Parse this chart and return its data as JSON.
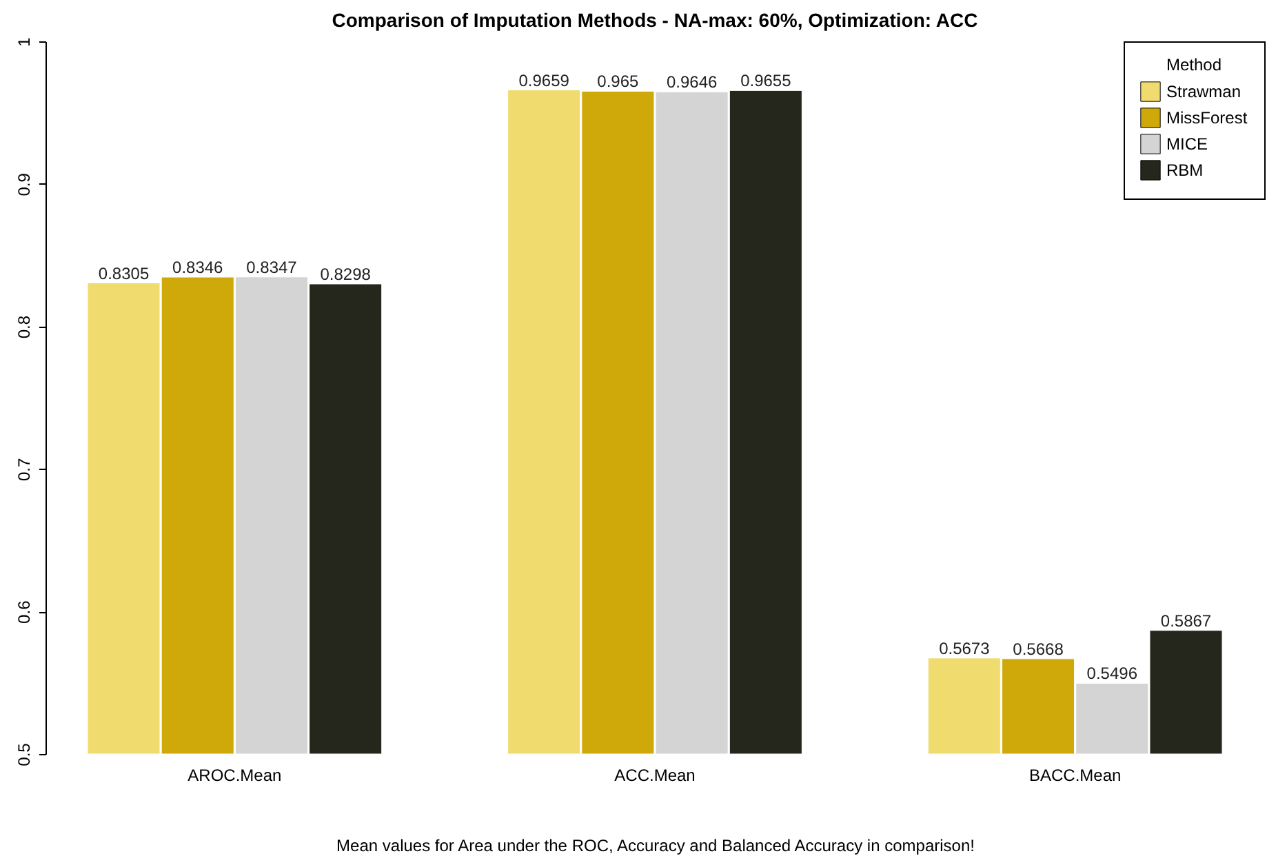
{
  "chart_data": {
    "type": "bar",
    "title": "Comparison of Imputation Methods - NA-max: 60%, Optimization: ACC",
    "xlabel": "Mean values for Area under the ROC, Accuracy and Balanced Accuracy in comparison!",
    "categories": [
      "AROC.Mean",
      "ACC.Mean",
      "BACC.Mean"
    ],
    "series": [
      {
        "name": "Strawman",
        "color": "#f0dc6e",
        "values": [
          0.8305,
          0.9659,
          0.5673
        ]
      },
      {
        "name": "MissForest",
        "color": "#cfa809",
        "values": [
          0.8346,
          0.965,
          0.5668
        ]
      },
      {
        "name": "MICE",
        "color": "#d4d4d4",
        "values": [
          0.8347,
          0.9646,
          0.5496
        ]
      },
      {
        "name": "RBM",
        "color": "#25271d",
        "values": [
          0.8298,
          0.9655,
          0.5867
        ]
      }
    ],
    "legend_title": "Method",
    "legend": "top right",
    "ylim": [
      0.5,
      1.0
    ],
    "yticks": [
      0.5,
      0.6,
      0.7,
      0.8,
      0.9,
      1.0
    ],
    "data_labels": true,
    "grid": false
  }
}
